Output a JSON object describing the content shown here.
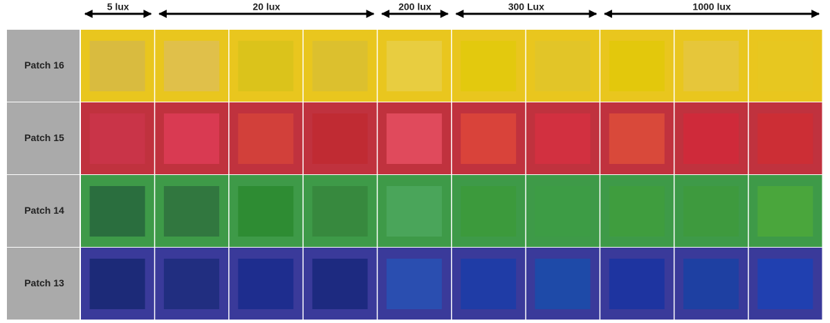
{
  "header": {
    "groups": [
      "5 lux",
      "20 lux",
      "200 lux",
      "300 Lux",
      "1000 lux"
    ]
  },
  "rows": [
    {
      "label": "Patch 16",
      "background": "#e9c61e",
      "cells": [
        "#d9bb3f",
        "#e0c04a",
        "#dbc31b",
        "#dcc02e",
        "#e8cd40",
        "#e3c90e",
        "#e2c528",
        "#e3c80c",
        "#e6c63a",
        "#e7c720"
      ]
    },
    {
      "label": "Patch 15",
      "background": "#c0323e",
      "cells": [
        "#c93448",
        "#d93a52",
        "#d2403a",
        "#c02b33",
        "#e04a5c",
        "#d9433a",
        "#d23040",
        "#d9493a",
        "#cf2a3a",
        "#cc2e35"
      ]
    },
    {
      "label": "Patch 14",
      "background": "#3e9a48",
      "cells": [
        "#2a6e3e",
        "#31773f",
        "#2e8c33",
        "#37893e",
        "#4aa55a",
        "#3c9a3c",
        "#3d9c45",
        "#3f9d3e",
        "#3e9a3e",
        "#4aa63c"
      ]
    },
    {
      "label": "Patch 13",
      "background": "#3a3a9a",
      "cells": [
        "#1c2a78",
        "#212e80",
        "#1e2d8e",
        "#1d2a80",
        "#2a4eb0",
        "#1f3ca6",
        "#1e4aa8",
        "#1e34a0",
        "#1e40a2",
        "#2040b0"
      ]
    }
  ]
}
